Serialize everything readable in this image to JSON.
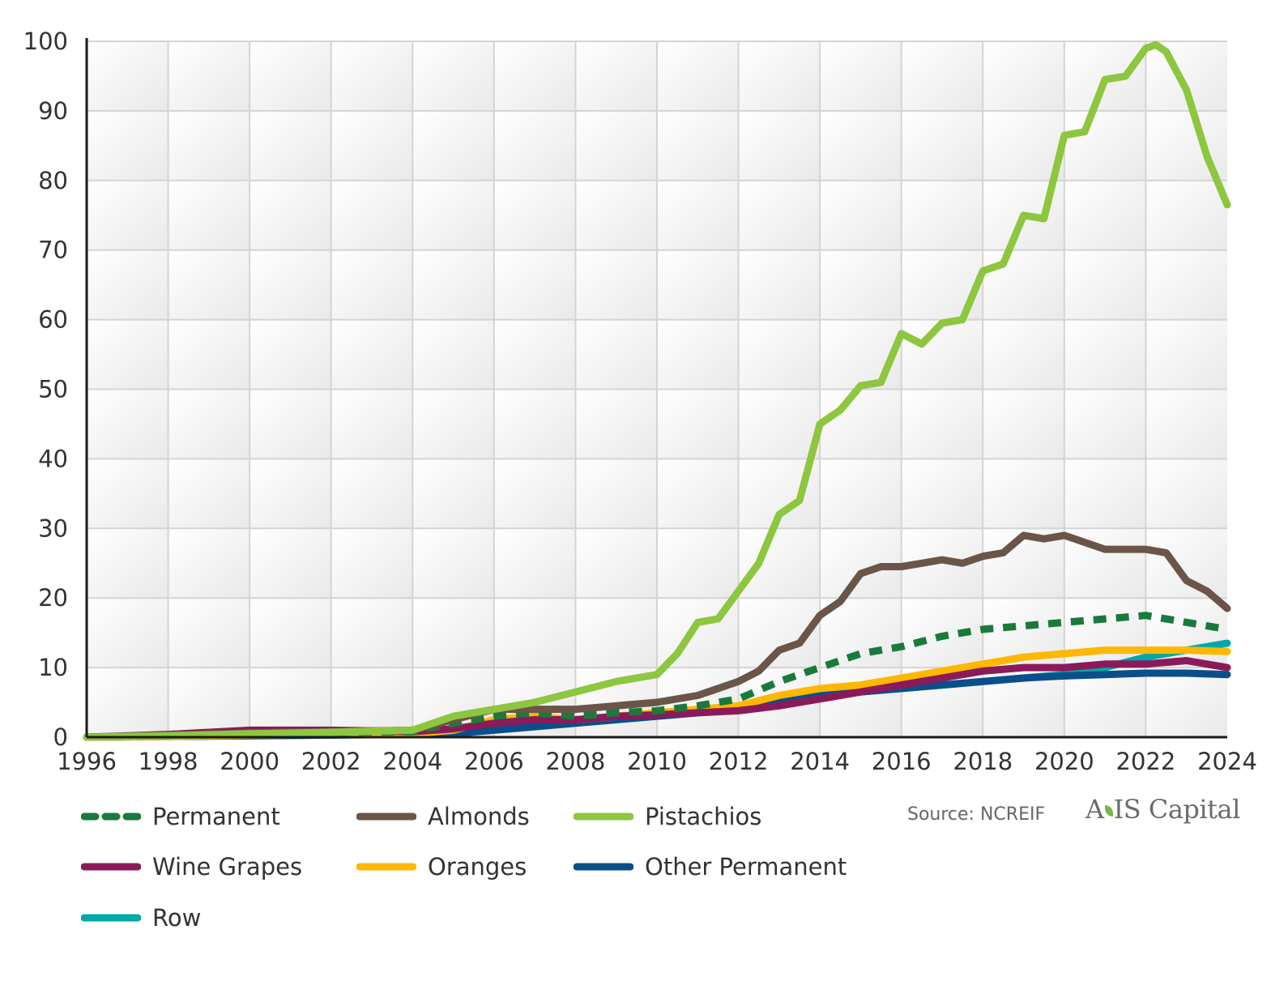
{
  "chart_data": {
    "type": "line",
    "title": "",
    "xlabel": "",
    "ylabel": "",
    "xlim": [
      1996,
      2024
    ],
    "ylim": [
      0,
      100
    ],
    "x_ticks": [
      "1996",
      "1998",
      "2000",
      "2002",
      "2004",
      "2006",
      "2008",
      "2010",
      "2012",
      "2014",
      "2016",
      "2018",
      "2020",
      "2022",
      "2024"
    ],
    "y_ticks": [
      "0",
      "10",
      "20",
      "30",
      "40",
      "50",
      "60",
      "70",
      "80",
      "90",
      "100"
    ],
    "grid": true,
    "legend_position": "bottom",
    "series": [
      {
        "name": "Permanent",
        "color": "#1a7a3c",
        "dashed": true,
        "x": [
          1996,
          1998,
          2000,
          2002,
          2004,
          2005,
          2006,
          2007,
          2008,
          2009,
          2010,
          2011,
          2012,
          2013,
          2014,
          2015,
          2016,
          2017,
          2018,
          2019,
          2020,
          2021,
          2022,
          2023,
          2024
        ],
        "y": [
          0,
          0.2,
          0.5,
          0.7,
          0.8,
          2.0,
          3.0,
          3.5,
          3.0,
          3.5,
          3.8,
          4.5,
          5.5,
          8.0,
          10.0,
          12.0,
          13.0,
          14.5,
          15.5,
          16.0,
          16.5,
          17.0,
          17.5,
          16.5,
          15.5
        ]
      },
      {
        "name": "Almonds",
        "color": "#6b5548",
        "dashed": false,
        "x": [
          1996,
          1998,
          2000,
          2002,
          2004,
          2005,
          2006,
          2007,
          2008,
          2009,
          2010,
          2011,
          2012,
          2012.5,
          2013,
          2013.5,
          2014,
          2014.5,
          2015,
          2015.5,
          2016,
          2016.5,
          2017,
          2017.5,
          2018,
          2018.5,
          2019,
          2019.5,
          2020,
          2020.5,
          2021,
          2021.5,
          2022,
          2022.5,
          2023,
          2023.5,
          2024
        ],
        "y": [
          0,
          0.3,
          0.6,
          0.8,
          1.0,
          2.5,
          4.0,
          4.0,
          4.0,
          4.5,
          5.0,
          6.0,
          8.0,
          9.5,
          12.5,
          13.5,
          17.5,
          19.5,
          23.5,
          24.5,
          24.5,
          25.0,
          25.5,
          25.0,
          26.0,
          26.5,
          29.0,
          28.5,
          29.0,
          28.0,
          27.0,
          27.0,
          27.0,
          26.5,
          22.5,
          21.0,
          18.5
        ]
      },
      {
        "name": "Pistachios",
        "color": "#8dc63f",
        "dashed": false,
        "x": [
          1996,
          1998,
          2000,
          2002,
          2004,
          2005,
          2006,
          2007,
          2008,
          2009,
          2010,
          2010.5,
          2011,
          2011.5,
          2012,
          2012.5,
          2013,
          2013.5,
          2014,
          2014.5,
          2015,
          2015.5,
          2016,
          2016.5,
          2017,
          2017.5,
          2018,
          2018.5,
          2019,
          2019.5,
          2020,
          2020.5,
          2021,
          2021.5,
          2022,
          2022.25,
          2022.5,
          2023,
          2023.5,
          2024
        ],
        "y": [
          0,
          0.2,
          0.5,
          0.7,
          1.0,
          3.0,
          4.0,
          5.0,
          6.5,
          8.0,
          9.0,
          12.0,
          16.5,
          17.0,
          21.0,
          25.0,
          32.0,
          34.0,
          45.0,
          47.0,
          50.5,
          51.0,
          58.0,
          56.5,
          59.5,
          60.0,
          67.0,
          68.0,
          75.0,
          74.5,
          86.5,
          87.0,
          94.5,
          95.0,
          99.0,
          99.5,
          98.5,
          93.0,
          83.5,
          76.5
        ]
      },
      {
        "name": "Wine Grapes",
        "color": "#8b1a5a",
        "dashed": false,
        "x": [
          1996,
          1998,
          2000,
          2002,
          2004,
          2005,
          2006,
          2007,
          2008,
          2009,
          2010,
          2011,
          2012,
          2013,
          2014,
          2015,
          2016,
          2017,
          2018,
          2019,
          2020,
          2021,
          2022,
          2023,
          2024
        ],
        "y": [
          0,
          0.4,
          1.0,
          1.0,
          0.8,
          1.2,
          2.0,
          2.5,
          2.5,
          3.0,
          3.2,
          3.5,
          3.8,
          4.5,
          5.5,
          6.5,
          7.5,
          8.5,
          9.5,
          10.0,
          10.0,
          10.5,
          10.5,
          11.0,
          10.0
        ]
      },
      {
        "name": "Oranges",
        "color": "#ffb700",
        "dashed": false,
        "x": [
          1996,
          1998,
          2000,
          2002,
          2004,
          2005,
          2006,
          2007,
          2008,
          2009,
          2010,
          2011,
          2012,
          2013,
          2014,
          2015,
          2016,
          2017,
          2018,
          2019,
          2020,
          2021,
          2022,
          2023,
          2024
        ],
        "y": [
          0,
          0.1,
          0.3,
          0.4,
          0.5,
          1.0,
          2.5,
          3.0,
          2.5,
          3.0,
          3.5,
          4.0,
          4.5,
          6.0,
          7.0,
          7.5,
          8.5,
          9.5,
          10.5,
          11.5,
          12.0,
          12.5,
          12.5,
          12.5,
          12.3
        ]
      },
      {
        "name": "Other Permanent",
        "color": "#0a4f8a",
        "dashed": false,
        "x": [
          1996,
          1998,
          2000,
          2002,
          2004,
          2005,
          2006,
          2007,
          2008,
          2009,
          2010,
          2011,
          2012,
          2013,
          2014,
          2015,
          2016,
          2017,
          2018,
          2019,
          2020,
          2021,
          2022,
          2023,
          2024
        ],
        "y": [
          0,
          0.1,
          0.2,
          0.3,
          0.4,
          0.5,
          1.0,
          1.5,
          2.0,
          2.5,
          3.0,
          3.5,
          4.0,
          5.0,
          6.0,
          6.5,
          7.0,
          7.5,
          8.0,
          8.5,
          8.8,
          9.0,
          9.2,
          9.2,
          9.0
        ]
      },
      {
        "name": "Row",
        "color": "#00a9a5",
        "dashed": false,
        "x": [
          1996,
          1998,
          2000,
          2002,
          2004,
          2005,
          2006,
          2007,
          2008,
          2009,
          2010,
          2011,
          2012,
          2013,
          2014,
          2015,
          2016,
          2017,
          2018,
          2019,
          2020,
          2021,
          2022,
          2023,
          2024
        ],
        "y": [
          0,
          0.1,
          0.2,
          0.3,
          0.5,
          1.0,
          2.0,
          2.5,
          2.5,
          2.8,
          3.0,
          3.5,
          4.0,
          5.0,
          6.0,
          6.5,
          7.0,
          7.5,
          8.0,
          8.5,
          9.0,
          10.0,
          11.5,
          12.5,
          13.5
        ]
      }
    ]
  },
  "source_text": "Source: NCREIF",
  "logo": {
    "part1": "A",
    "part2": "IS Capital"
  }
}
